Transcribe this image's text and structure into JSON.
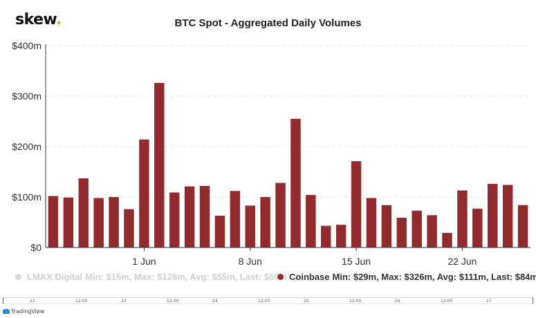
{
  "header": {
    "logo_text": "skew",
    "logo_dot": ".",
    "title": "BTC Spot - Aggregated Daily Volumes"
  },
  "chart_data": {
    "type": "bar",
    "title": "BTC Spot - Aggregated Daily Volumes",
    "xlabel": "",
    "ylabel": "",
    "ylim": [
      0,
      400
    ],
    "y_unit": "m",
    "y_ticks": [
      "$0",
      "$100m",
      "$200m",
      "$300m",
      "$400m"
    ],
    "y_tick_values": [
      0,
      100,
      200,
      300,
      400
    ],
    "x_tick_labels": [
      "1 Jun",
      "8 Jun",
      "15 Jun",
      "22 Jun"
    ],
    "x_tick_bar_index": [
      6,
      13,
      20,
      27
    ],
    "grid": true,
    "legend_position": "bottom",
    "bar_color": "#922b2e",
    "series": [
      {
        "name": "Coinbase",
        "values": [
          102,
          99,
          137,
          98,
          100,
          76,
          214,
          326,
          109,
          121,
          122,
          63,
          112,
          83,
          100,
          128,
          255,
          104,
          43,
          45,
          171,
          98,
          84,
          59,
          73,
          64,
          29,
          113,
          77,
          126,
          124,
          84
        ]
      }
    ]
  },
  "legend": {
    "items": [
      {
        "name": "LMAX Digital",
        "stats": "Min: $15m, Max: $128m, Avg: $55m, Last: $60m",
        "color": "#d8d8d8",
        "active": false
      },
      {
        "name": "Coinbase",
        "stats": "Min: $29m, Max: $326m, Avg: $111m, Last: $84m",
        "color": "#922b2e",
        "active": true
      }
    ]
  },
  "navigator": {
    "ticks": [
      "22",
      "12:00",
      "23",
      "12:00",
      "24",
      "12:00",
      "25",
      "12:00",
      "26",
      "12:00",
      "27"
    ]
  },
  "footer": {
    "brand": "TradingView",
    "icon": "tradingview-cloud-icon"
  }
}
